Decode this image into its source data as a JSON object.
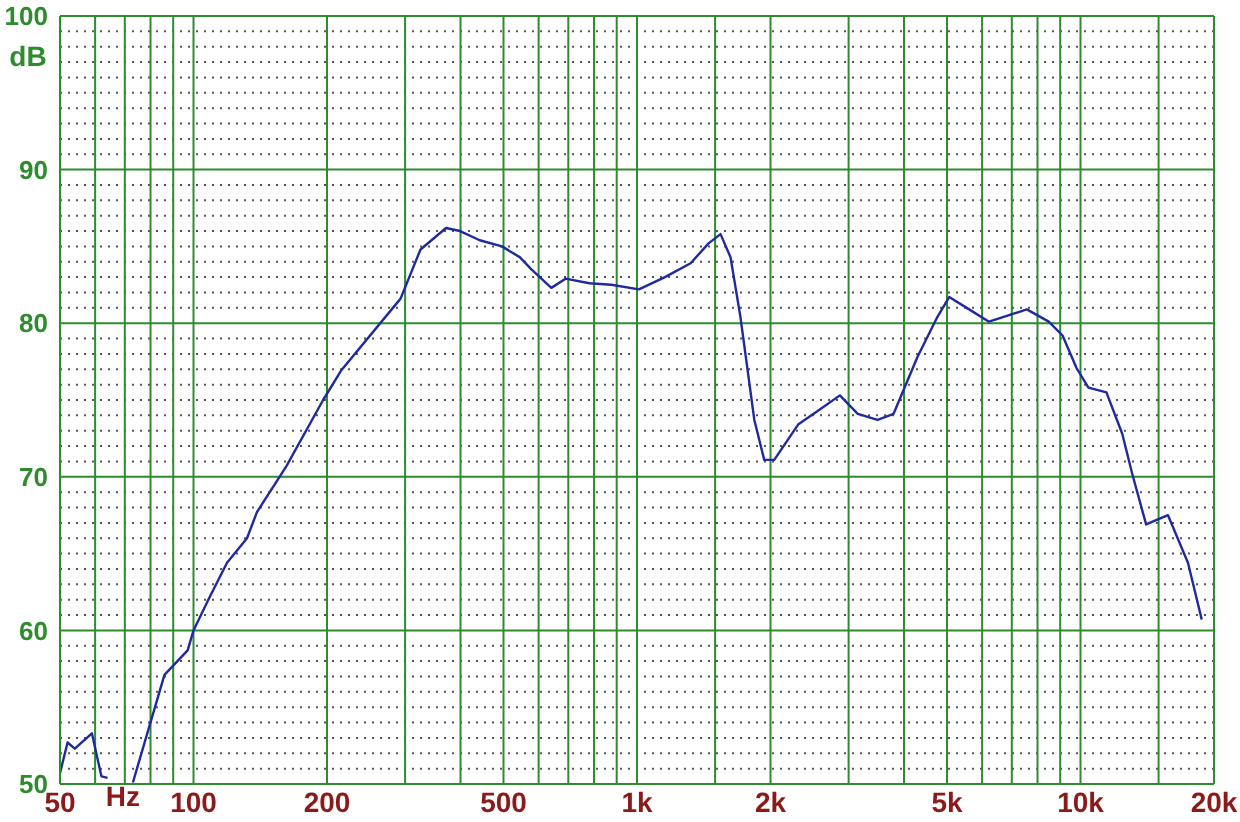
{
  "chart_data": {
    "type": "line",
    "xlabel": "Hz",
    "ylabel": "dB",
    "log": "x",
    "grid": true,
    "marker": "none",
    "line_style": "solid",
    "xlim": [
      50,
      20000
    ],
    "ylim": [
      50,
      100
    ],
    "xticks": [
      50,
      {
        "value": 60,
        "label": null
      },
      {
        "value": 70,
        "label": null
      },
      {
        "value": 80,
        "label": null
      },
      {
        "value": 90,
        "label": null
      },
      100,
      200,
      {
        "value": 300,
        "label": null
      },
      {
        "value": 400,
        "label": null
      },
      500,
      {
        "value": 600,
        "label": null
      },
      {
        "value": 700,
        "label": null
      },
      {
        "value": 800,
        "label": null
      },
      {
        "value": 900,
        "label": null
      },
      {
        "value": 1000,
        "label": "1k"
      },
      {
        "value": 1500,
        "label": null
      },
      {
        "value": 2000,
        "label": "2k"
      },
      {
        "value": 3000,
        "label": null
      },
      {
        "value": 4000,
        "label": null
      },
      {
        "value": 5000,
        "label": "5k"
      },
      {
        "value": 6000,
        "label": null
      },
      {
        "value": 7000,
        "label": null
      },
      {
        "value": 8000,
        "label": null
      },
      {
        "value": 9000,
        "label": null
      },
      {
        "value": 10000,
        "label": "10k"
      },
      {
        "value": 15000,
        "label": null
      },
      {
        "value": 20000,
        "label": "20k"
      }
    ],
    "yticks": [
      50,
      {
        "value": 51,
        "label": null
      },
      {
        "value": 52,
        "label": null
      },
      {
        "value": 53,
        "label": null
      },
      {
        "value": 54,
        "label": null
      },
      {
        "value": 55,
        "label": null
      },
      {
        "value": 56,
        "label": null
      },
      {
        "value": 57,
        "label": null
      },
      {
        "value": 58,
        "label": null
      },
      {
        "value": 59,
        "label": null
      },
      60,
      {
        "value": 61,
        "label": null
      },
      {
        "value": 62,
        "label": null
      },
      {
        "value": 63,
        "label": null
      },
      {
        "value": 64,
        "label": null
      },
      {
        "value": 65,
        "label": null
      },
      {
        "value": 66,
        "label": null
      },
      {
        "value": 67,
        "label": null
      },
      {
        "value": 68,
        "label": null
      },
      {
        "value": 69,
        "label": null
      },
      70,
      {
        "value": 71,
        "label": null
      },
      {
        "value": 72,
        "label": null
      },
      {
        "value": 73,
        "label": null
      },
      {
        "value": 74,
        "label": null
      },
      {
        "value": 75,
        "label": null
      },
      {
        "value": 76,
        "label": null
      },
      {
        "value": 77,
        "label": null
      },
      {
        "value": 78,
        "label": null
      },
      {
        "value": 79,
        "label": null
      },
      80,
      {
        "value": 81,
        "label": null
      },
      {
        "value": 82,
        "label": null
      },
      {
        "value": 83,
        "label": null
      },
      {
        "value": 84,
        "label": null
      },
      {
        "value": 85,
        "label": null
      },
      {
        "value": 86,
        "label": null
      },
      {
        "value": 87,
        "label": null
      },
      {
        "value": 88,
        "label": null
      },
      {
        "value": 89,
        "label": null
      },
      90,
      {
        "value": 91,
        "label": null
      },
      {
        "value": 92,
        "label": null
      },
      {
        "value": 93,
        "label": null
      },
      {
        "value": 94,
        "label": null
      },
      {
        "value": 95,
        "label": null
      },
      {
        "value": 96,
        "label": null
      },
      {
        "value": 97,
        "label": null
      },
      {
        "value": 98,
        "label": null
      },
      {
        "value": 99,
        "label": null
      },
      100
    ],
    "series": [
      {
        "color": "#1f2a9e",
        "x": [
          50,
          52,
          54,
          59,
          62,
          64,
          69,
          73,
          86,
          97,
          100,
          108,
          119,
          132,
          139,
          162,
          196,
          215,
          293,
          325,
          371,
          399,
          442,
          496,
          544,
          578,
          641,
          690,
          781,
          875,
          1010,
          1156,
          1321,
          1450,
          1543,
          1625,
          1711,
          1839,
          1936,
          2039,
          2308,
          2559,
          2867,
          3146,
          3487,
          3789,
          4289,
          4755,
          5058,
          5609,
          6218,
          7568,
          8480,
          9110,
          9790,
          10420,
          11440,
          12420,
          13080,
          14060,
          15750,
          17470,
          18770
        ],
        "values": [
          50.7,
          52.7,
          52.3,
          53.3,
          50.5,
          50.4,
          null,
          50.1,
          57.1,
          58.7,
          60,
          62,
          64.4,
          66,
          67.7,
          70.7,
          75,
          76.9,
          81.6,
          84.8,
          86.2,
          86,
          85.4,
          85,
          84.3,
          83.5,
          82.3,
          82.9,
          82.6,
          82.5,
          82.2,
          83,
          83.9,
          85.2,
          85.8,
          84.3,
          80.4,
          73.7,
          71.1,
          71.1,
          73.4,
          74.3,
          75.3,
          74.1,
          73.7,
          74.1,
          77.8,
          80.4,
          81.7,
          80.9,
          80.1,
          80.9,
          80.1,
          79.2,
          77.1,
          75.8,
          75.5,
          72.8,
          70.2,
          66.9,
          67.5,
          64.4,
          60.7
        ]
      }
    ]
  }
}
